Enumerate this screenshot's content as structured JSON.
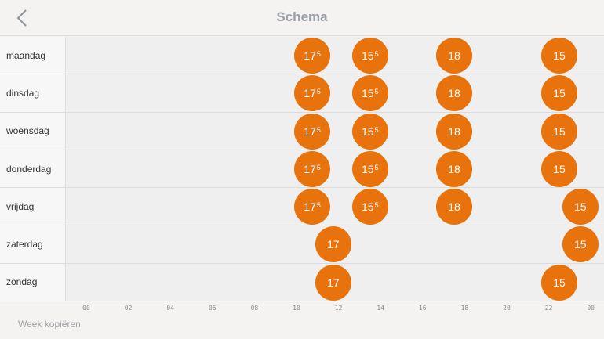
{
  "header": {
    "title": "Schema",
    "back_icon": "chevron-left-icon"
  },
  "accent": "#e8720c",
  "days": [
    {
      "label": "maandag",
      "setpoints": [
        {
          "hour": 10.75,
          "value": "17",
          "sup": "5"
        },
        {
          "hour": 13.5,
          "value": "15",
          "sup": "5"
        },
        {
          "hour": 17.5,
          "value": "18",
          "sup": ""
        },
        {
          "hour": 22.5,
          "value": "15",
          "sup": ""
        }
      ]
    },
    {
      "label": "dinsdag",
      "setpoints": [
        {
          "hour": 10.75,
          "value": "17",
          "sup": "5"
        },
        {
          "hour": 13.5,
          "value": "15",
          "sup": "5"
        },
        {
          "hour": 17.5,
          "value": "18",
          "sup": ""
        },
        {
          "hour": 22.5,
          "value": "15",
          "sup": ""
        }
      ]
    },
    {
      "label": "woensdag",
      "setpoints": [
        {
          "hour": 10.75,
          "value": "17",
          "sup": "5"
        },
        {
          "hour": 13.5,
          "value": "15",
          "sup": "5"
        },
        {
          "hour": 17.5,
          "value": "18",
          "sup": ""
        },
        {
          "hour": 22.5,
          "value": "15",
          "sup": ""
        }
      ]
    },
    {
      "label": "donderdag",
      "setpoints": [
        {
          "hour": 10.75,
          "value": "17",
          "sup": "5"
        },
        {
          "hour": 13.5,
          "value": "15",
          "sup": "5"
        },
        {
          "hour": 17.5,
          "value": "18",
          "sup": ""
        },
        {
          "hour": 22.5,
          "value": "15",
          "sup": ""
        }
      ]
    },
    {
      "label": "vrijdag",
      "setpoints": [
        {
          "hour": 10.75,
          "value": "17",
          "sup": "5"
        },
        {
          "hour": 13.5,
          "value": "15",
          "sup": "5"
        },
        {
          "hour": 17.5,
          "value": "18",
          "sup": ""
        },
        {
          "hour": 23.5,
          "value": "15",
          "sup": ""
        }
      ]
    },
    {
      "label": "zaterdag",
      "setpoints": [
        {
          "hour": 11.75,
          "value": "17",
          "sup": ""
        },
        {
          "hour": 23.5,
          "value": "15",
          "sup": ""
        }
      ]
    },
    {
      "label": "zondag",
      "setpoints": [
        {
          "hour": 11.75,
          "value": "17",
          "sup": ""
        },
        {
          "hour": 22.5,
          "value": "15",
          "sup": ""
        }
      ]
    }
  ],
  "axis": {
    "ticks": [
      "00",
      "02",
      "04",
      "06",
      "08",
      "10",
      "12",
      "14",
      "16",
      "18",
      "20",
      "22",
      "00"
    ]
  },
  "footer": {
    "copy_week": "Week kopiëren"
  }
}
